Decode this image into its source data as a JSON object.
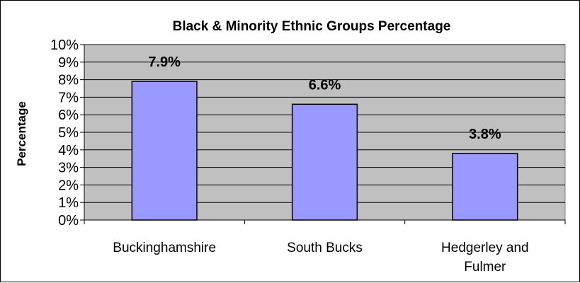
{
  "chart_data": {
    "type": "bar",
    "title": "Black & Minority Ethnic Groups Percentage",
    "ylabel": "Percentage",
    "xlabel": "",
    "categories": [
      [
        "Buckinghamshire"
      ],
      [
        "South Bucks"
      ],
      [
        "Hedgerley and",
        "Fulmer"
      ]
    ],
    "values": [
      7.9,
      6.6,
      3.8
    ],
    "data_labels": [
      "7.9%",
      "6.6%",
      "3.8%"
    ],
    "ylim": [
      0,
      10
    ],
    "yticks": [
      "0%",
      "1%",
      "2%",
      "3%",
      "4%",
      "5%",
      "6%",
      "7%",
      "8%",
      "9%",
      "10%"
    ],
    "grid": true,
    "legend": "none",
    "colors": {
      "bar_fill": "#9999ff",
      "bar_stroke": "#000000",
      "plot_bg": "#c0c0c0",
      "grid": "#000000"
    }
  }
}
